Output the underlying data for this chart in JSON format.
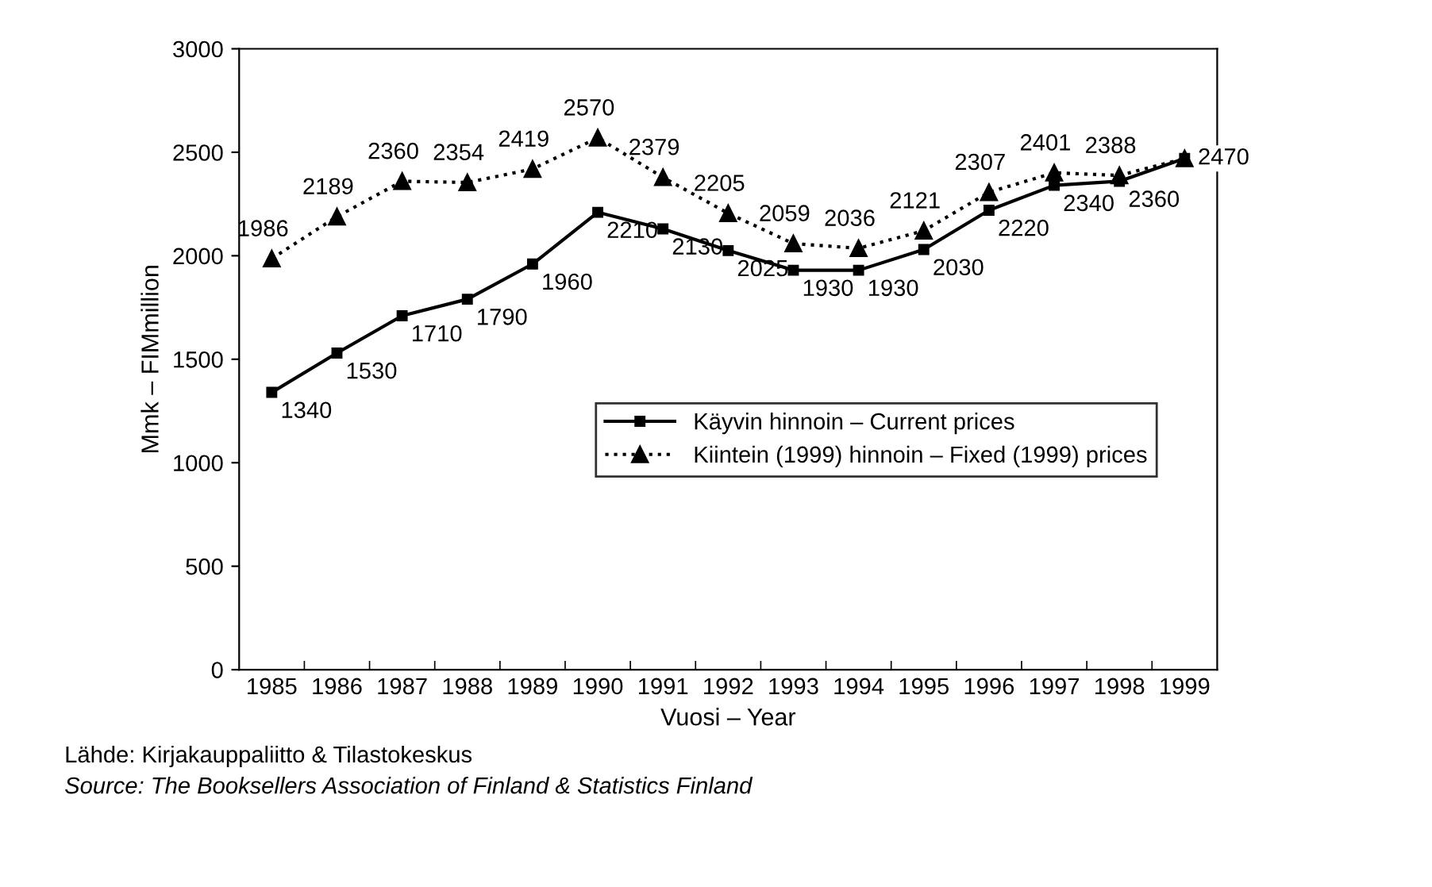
{
  "chart_data": {
    "type": "line",
    "xlabel": "Vuosi – Year",
    "ylabel": "Mmk – FIMmillion",
    "categories": [
      "1985",
      "1986",
      "1987",
      "1988",
      "1989",
      "1990",
      "1991",
      "1992",
      "1993",
      "1994",
      "1995",
      "1996",
      "1997",
      "1998",
      "1999"
    ],
    "series": [
      {
        "name": "Käyvin hinnoin – Current prices",
        "color": "#000000",
        "marker": "square",
        "line_style": "solid",
        "values": [
          1340,
          1530,
          1710,
          1790,
          1960,
          2210,
          2130,
          2025,
          1930,
          1930,
          2030,
          2220,
          2340,
          2360,
          2470
        ],
        "value_labels": [
          "1340",
          "1530",
          "1710",
          "1790",
          "1960",
          "2210",
          "2130",
          "2025",
          "1930",
          "1930",
          "2030",
          "2220",
          "2340",
          "2360",
          "2470"
        ]
      },
      {
        "name": "Kiintein (1999) hinnoin – Fixed (1999) prices",
        "color": "#000000",
        "marker": "triangle",
        "line_style": "dotted",
        "values": [
          1986,
          2189,
          2360,
          2354,
          2419,
          2570,
          2379,
          2205,
          2059,
          2036,
          2121,
          2307,
          2401,
          2388,
          2470
        ],
        "value_labels": [
          "1986",
          "2189",
          "2360",
          "2354",
          "2419",
          "2570",
          "2379",
          "2205",
          "2059",
          "2036",
          "2121",
          "2307",
          "2401",
          "2388",
          null
        ]
      }
    ],
    "ylim": [
      0,
      3000
    ],
    "yticks": [
      0,
      500,
      1000,
      1500,
      2000,
      2500,
      3000
    ],
    "grid": false,
    "legend": "center right",
    "annotations": [
      "Lähde: Kirjakauppaliitto & Tilastokeskus",
      "Source: The Booksellers Association of Finland & Statistics Finland"
    ]
  }
}
